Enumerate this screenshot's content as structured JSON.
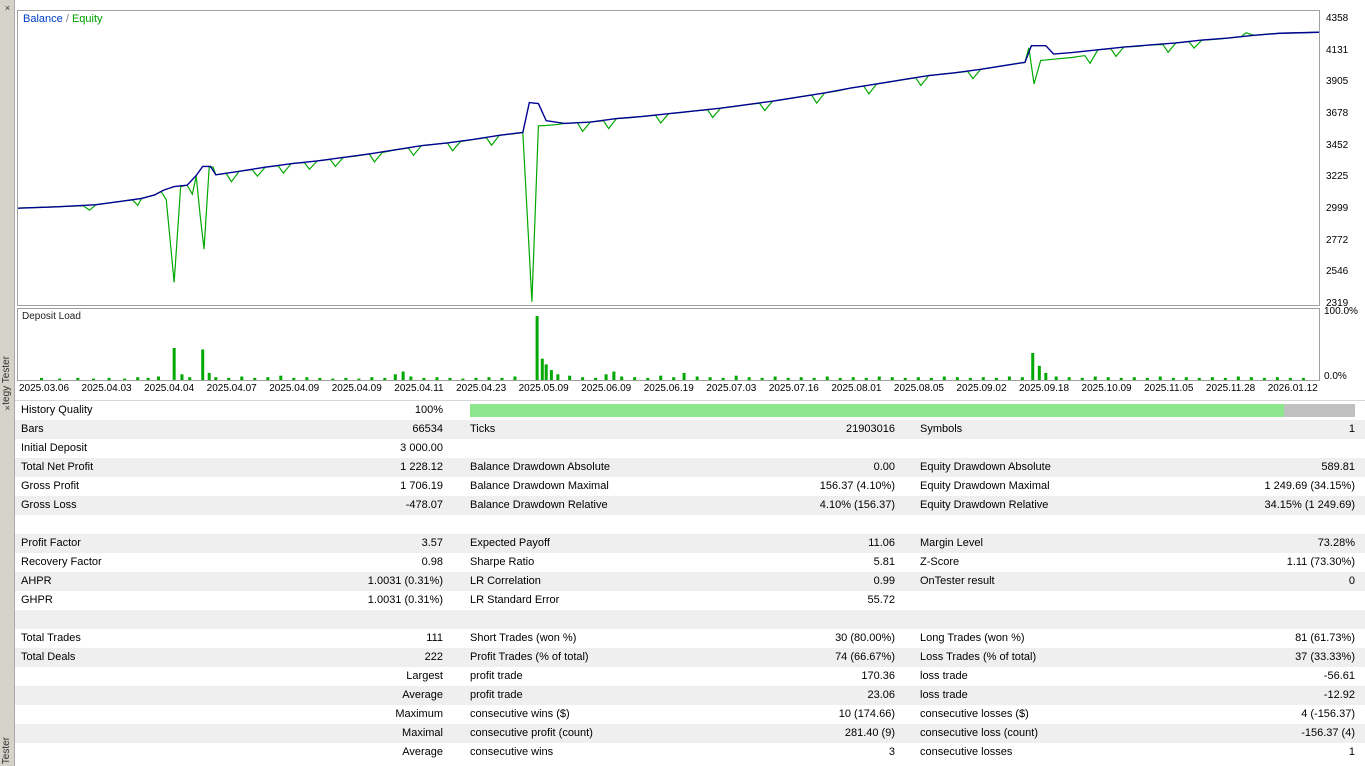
{
  "left_rail": {
    "close_top": "×",
    "panel_title_top": "tegy Tester",
    "close_mid": "×",
    "panel_title_bottom": "Tester"
  },
  "legend": {
    "balance": "Balance",
    "separator": " / ",
    "equity": "Equity"
  },
  "deposit_pane": {
    "label": "Deposit Load",
    "y_max": "100.0%",
    "y_min": "0.0%"
  },
  "chart": {
    "type": "line",
    "y_ticks": [
      "4358",
      "4131",
      "3905",
      "3678",
      "3452",
      "3225",
      "2999",
      "2772",
      "2546",
      "2319"
    ],
    "dates": [
      "2025.03.06",
      "2025.04.03",
      "2025.04.04",
      "2025.04.07",
      "2025.04.09",
      "2025.04.09",
      "2025.04.11",
      "2025.04.23",
      "2025.05.09",
      "2025.06.09",
      "2025.06.19",
      "2025.07.03",
      "2025.07.16",
      "2025.08.01",
      "2025.08.05",
      "2025.09.02",
      "2025.09.18",
      "2025.10.09",
      "2025.11.05",
      "2025.11.28",
      "2026.01.12"
    ],
    "colors": {
      "balance": "#000093",
      "equity": "#00A800",
      "deposit": "#00A800"
    },
    "balance": [
      [
        0,
        2995
      ],
      [
        30,
        3005
      ],
      [
        60,
        3020
      ],
      [
        80,
        3045
      ],
      [
        95,
        3065
      ],
      [
        105,
        3090
      ],
      [
        112,
        3125
      ],
      [
        120,
        3150
      ],
      [
        130,
        3160
      ],
      [
        137,
        3230
      ],
      [
        142,
        3295
      ],
      [
        148,
        3295
      ],
      [
        152,
        3235
      ],
      [
        170,
        3260
      ],
      [
        190,
        3290
      ],
      [
        210,
        3315
      ],
      [
        230,
        3335
      ],
      [
        250,
        3360
      ],
      [
        270,
        3385
      ],
      [
        290,
        3415
      ],
      [
        310,
        3445
      ],
      [
        330,
        3465
      ],
      [
        350,
        3490
      ],
      [
        370,
        3520
      ],
      [
        388,
        3540
      ],
      [
        393,
        3755
      ],
      [
        400,
        3748
      ],
      [
        406,
        3625
      ],
      [
        420,
        3605
      ],
      [
        440,
        3615
      ],
      [
        460,
        3640
      ],
      [
        480,
        3655
      ],
      [
        500,
        3675
      ],
      [
        520,
        3695
      ],
      [
        540,
        3715
      ],
      [
        560,
        3740
      ],
      [
        580,
        3765
      ],
      [
        600,
        3795
      ],
      [
        620,
        3825
      ],
      [
        640,
        3860
      ],
      [
        660,
        3890
      ],
      [
        680,
        3920
      ],
      [
        700,
        3950
      ],
      [
        720,
        3970
      ],
      [
        740,
        3995
      ],
      [
        760,
        4025
      ],
      [
        774,
        4045
      ],
      [
        779,
        4165
      ],
      [
        790,
        4165
      ],
      [
        796,
        4105
      ],
      [
        810,
        4115
      ],
      [
        830,
        4135
      ],
      [
        850,
        4155
      ],
      [
        870,
        4170
      ],
      [
        890,
        4185
      ],
      [
        910,
        4205
      ],
      [
        930,
        4220
      ],
      [
        950,
        4240
      ],
      [
        970,
        4255
      ],
      [
        1000,
        4262
      ]
    ],
    "equity": [
      [
        0,
        2995
      ],
      [
        30,
        3005
      ],
      [
        50,
        3012
      ],
      [
        55,
        2980
      ],
      [
        60,
        3020
      ],
      [
        80,
        3045
      ],
      [
        88,
        3055
      ],
      [
        92,
        3015
      ],
      [
        95,
        3065
      ],
      [
        105,
        3090
      ],
      [
        110,
        3115
      ],
      [
        114,
        3055
      ],
      [
        120,
        2460
      ],
      [
        125,
        3150
      ],
      [
        130,
        3160
      ],
      [
        134,
        3095
      ],
      [
        137,
        3225
      ],
      [
        140,
        2945
      ],
      [
        143,
        2700
      ],
      [
        147,
        3290
      ],
      [
        150,
        3290
      ],
      [
        152,
        3235
      ],
      [
        160,
        3245
      ],
      [
        164,
        3185
      ],
      [
        170,
        3260
      ],
      [
        180,
        3272
      ],
      [
        184,
        3225
      ],
      [
        190,
        3290
      ],
      [
        200,
        3300
      ],
      [
        204,
        3248
      ],
      [
        210,
        3315
      ],
      [
        220,
        3324
      ],
      [
        224,
        3275
      ],
      [
        230,
        3335
      ],
      [
        240,
        3346
      ],
      [
        244,
        3295
      ],
      [
        250,
        3360
      ],
      [
        260,
        3370
      ],
      [
        270,
        3385
      ],
      [
        274,
        3328
      ],
      [
        280,
        3395
      ],
      [
        290,
        3415
      ],
      [
        300,
        3428
      ],
      [
        304,
        3375
      ],
      [
        310,
        3445
      ],
      [
        320,
        3455
      ],
      [
        330,
        3465
      ],
      [
        334,
        3408
      ],
      [
        340,
        3473
      ],
      [
        350,
        3490
      ],
      [
        360,
        3503
      ],
      [
        364,
        3448
      ],
      [
        370,
        3520
      ],
      [
        380,
        3530
      ],
      [
        388,
        3540
      ],
      [
        395,
        2320
      ],
      [
        400,
        3588
      ],
      [
        406,
        3590
      ],
      [
        415,
        3598
      ],
      [
        420,
        3605
      ],
      [
        430,
        3610
      ],
      [
        434,
        3548
      ],
      [
        440,
        3615
      ],
      [
        450,
        3624
      ],
      [
        454,
        3568
      ],
      [
        460,
        3640
      ],
      [
        470,
        3646
      ],
      [
        480,
        3655
      ],
      [
        490,
        3664
      ],
      [
        494,
        3608
      ],
      [
        500,
        3675
      ],
      [
        510,
        3684
      ],
      [
        520,
        3695
      ],
      [
        530,
        3704
      ],
      [
        534,
        3648
      ],
      [
        540,
        3715
      ],
      [
        550,
        3726
      ],
      [
        560,
        3740
      ],
      [
        570,
        3750
      ],
      [
        574,
        3698
      ],
      [
        580,
        3765
      ],
      [
        590,
        3780
      ],
      [
        600,
        3795
      ],
      [
        610,
        3810
      ],
      [
        614,
        3752
      ],
      [
        620,
        3825
      ],
      [
        630,
        3840
      ],
      [
        640,
        3860
      ],
      [
        650,
        3874
      ],
      [
        654,
        3818
      ],
      [
        660,
        3890
      ],
      [
        670,
        3904
      ],
      [
        680,
        3920
      ],
      [
        690,
        3934
      ],
      [
        694,
        3878
      ],
      [
        700,
        3950
      ],
      [
        710,
        3960
      ],
      [
        720,
        3970
      ],
      [
        730,
        3980
      ],
      [
        734,
        3928
      ],
      [
        740,
        3995
      ],
      [
        750,
        4010
      ],
      [
        760,
        4025
      ],
      [
        770,
        4040
      ],
      [
        774,
        4045
      ],
      [
        777,
        4150
      ],
      [
        781,
        3890
      ],
      [
        786,
        4058
      ],
      [
        796,
        4068
      ],
      [
        810,
        4080
      ],
      [
        820,
        4094
      ],
      [
        824,
        4038
      ],
      [
        830,
        4135
      ],
      [
        840,
        4144
      ],
      [
        844,
        4088
      ],
      [
        850,
        4155
      ],
      [
        860,
        4160
      ],
      [
        870,
        4170
      ],
      [
        880,
        4174
      ],
      [
        884,
        4118
      ],
      [
        890,
        4185
      ],
      [
        900,
        4194
      ],
      [
        904,
        4148
      ],
      [
        910,
        4205
      ],
      [
        920,
        4210
      ],
      [
        930,
        4220
      ],
      [
        940,
        4230
      ],
      [
        944,
        4258
      ],
      [
        950,
        4240
      ],
      [
        960,
        4248
      ],
      [
        970,
        4255
      ],
      [
        1000,
        4262
      ]
    ],
    "deposit_load": [
      [
        18,
        3
      ],
      [
        32,
        2
      ],
      [
        46,
        3
      ],
      [
        58,
        2
      ],
      [
        70,
        3
      ],
      [
        82,
        2
      ],
      [
        92,
        4
      ],
      [
        100,
        3
      ],
      [
        108,
        5
      ],
      [
        120,
        45
      ],
      [
        126,
        8
      ],
      [
        132,
        4
      ],
      [
        142,
        43
      ],
      [
        147,
        10
      ],
      [
        152,
        4
      ],
      [
        162,
        3
      ],
      [
        172,
        5
      ],
      [
        182,
        3
      ],
      [
        192,
        4
      ],
      [
        202,
        6
      ],
      [
        212,
        3
      ],
      [
        222,
        4
      ],
      [
        232,
        3
      ],
      [
        242,
        2
      ],
      [
        252,
        3
      ],
      [
        262,
        2
      ],
      [
        272,
        4
      ],
      [
        282,
        3
      ],
      [
        290,
        8
      ],
      [
        296,
        12
      ],
      [
        302,
        5
      ],
      [
        312,
        3
      ],
      [
        322,
        4
      ],
      [
        332,
        3
      ],
      [
        342,
        2
      ],
      [
        352,
        3
      ],
      [
        362,
        4
      ],
      [
        372,
        3
      ],
      [
        382,
        5
      ],
      [
        399,
        90
      ],
      [
        403,
        30
      ],
      [
        406,
        22
      ],
      [
        410,
        14
      ],
      [
        415,
        8
      ],
      [
        424,
        6
      ],
      [
        434,
        4
      ],
      [
        444,
        3
      ],
      [
        452,
        8
      ],
      [
        458,
        12
      ],
      [
        464,
        5
      ],
      [
        474,
        4
      ],
      [
        484,
        3
      ],
      [
        494,
        6
      ],
      [
        504,
        4
      ],
      [
        512,
        10
      ],
      [
        522,
        5
      ],
      [
        532,
        4
      ],
      [
        542,
        3
      ],
      [
        552,
        6
      ],
      [
        562,
        4
      ],
      [
        572,
        3
      ],
      [
        582,
        5
      ],
      [
        592,
        3
      ],
      [
        602,
        4
      ],
      [
        612,
        3
      ],
      [
        622,
        5
      ],
      [
        632,
        3
      ],
      [
        642,
        4
      ],
      [
        652,
        3
      ],
      [
        662,
        5
      ],
      [
        672,
        4
      ],
      [
        682,
        3
      ],
      [
        692,
        4
      ],
      [
        702,
        3
      ],
      [
        712,
        5
      ],
      [
        722,
        4
      ],
      [
        732,
        3
      ],
      [
        742,
        4
      ],
      [
        752,
        3
      ],
      [
        762,
        5
      ],
      [
        772,
        4
      ],
      [
        780,
        38
      ],
      [
        785,
        20
      ],
      [
        790,
        10
      ],
      [
        798,
        5
      ],
      [
        808,
        4
      ],
      [
        818,
        3
      ],
      [
        828,
        5
      ],
      [
        838,
        4
      ],
      [
        848,
        3
      ],
      [
        858,
        4
      ],
      [
        868,
        3
      ],
      [
        878,
        5
      ],
      [
        888,
        3
      ],
      [
        898,
        4
      ],
      [
        908,
        3
      ],
      [
        918,
        4
      ],
      [
        928,
        3
      ],
      [
        938,
        5
      ],
      [
        948,
        4
      ],
      [
        958,
        3
      ],
      [
        968,
        4
      ],
      [
        978,
        3
      ],
      [
        988,
        3
      ]
    ]
  },
  "table": {
    "quality_bar_fill_color": "#8DE88D",
    "quality_bar_track_color": "#C0C0C0",
    "rows": [
      {
        "cells": [
          "History Quality",
          "100%",
          "",
          "",
          "",
          ""
        ],
        "bar": 92
      },
      {
        "cells": [
          "Bars",
          "66534",
          "Ticks",
          "21903016",
          "Symbols",
          "1"
        ]
      },
      {
        "cells": [
          "Initial Deposit",
          "3 000.00",
          "",
          "",
          "",
          ""
        ]
      },
      {
        "cells": [
          "Total Net Profit",
          "1 228.12",
          "Balance Drawdown Absolute",
          "0.00",
          "Equity Drawdown Absolute",
          "589.81"
        ]
      },
      {
        "cells": [
          "Gross Profit",
          "1 706.19",
          "Balance Drawdown Maximal",
          "156.37 (4.10%)",
          "Equity Drawdown Maximal",
          "1 249.69 (34.15%)"
        ]
      },
      {
        "cells": [
          "Gross Loss",
          "-478.07",
          "Balance Drawdown Relative",
          "4.10% (156.37)",
          "Equity Drawdown Relative",
          "34.15% (1 249.69)"
        ]
      },
      {
        "cells": [
          "",
          "",
          "",
          "",
          "",
          ""
        ]
      },
      {
        "cells": [
          "Profit Factor",
          "3.57",
          "Expected Payoff",
          "11.06",
          "Margin Level",
          "73.28%"
        ]
      },
      {
        "cells": [
          "Recovery Factor",
          "0.98",
          "Sharpe Ratio",
          "5.81",
          "Z-Score",
          "1.11 (73.30%)"
        ]
      },
      {
        "cells": [
          "AHPR",
          "1.0031 (0.31%)",
          "LR Correlation",
          "0.99",
          "OnTester result",
          "0"
        ]
      },
      {
        "cells": [
          "GHPR",
          "1.0031 (0.31%)",
          "LR Standard Error",
          "55.72",
          "",
          ""
        ]
      },
      {
        "cells": [
          "",
          "",
          "",
          "",
          "",
          ""
        ]
      },
      {
        "cells": [
          "Total Trades",
          "111",
          "Short Trades (won %)",
          "30 (80.00%)",
          "Long Trades (won %)",
          "81 (61.73%)"
        ]
      },
      {
        "cells": [
          "Total Deals",
          "222",
          "Profit Trades (% of total)",
          "74 (66.67%)",
          "Loss Trades (% of total)",
          "37 (33.33%)"
        ]
      },
      {
        "cells": [
          "",
          "Largest",
          "profit trade",
          "170.36",
          "loss trade",
          "-56.61"
        ]
      },
      {
        "cells": [
          "",
          "Average",
          "profit trade",
          "23.06",
          "loss trade",
          "-12.92"
        ]
      },
      {
        "cells": [
          "",
          "Maximum",
          "consecutive wins ($)",
          "10 (174.66)",
          "consecutive losses ($)",
          "4 (-156.37)"
        ]
      },
      {
        "cells": [
          "",
          "Maximal",
          "consecutive profit (count)",
          "281.40 (9)",
          "consecutive loss (count)",
          "-156.37 (4)"
        ]
      },
      {
        "cells": [
          "",
          "Average",
          "consecutive wins",
          "3",
          "consecutive losses",
          "1"
        ]
      }
    ]
  }
}
